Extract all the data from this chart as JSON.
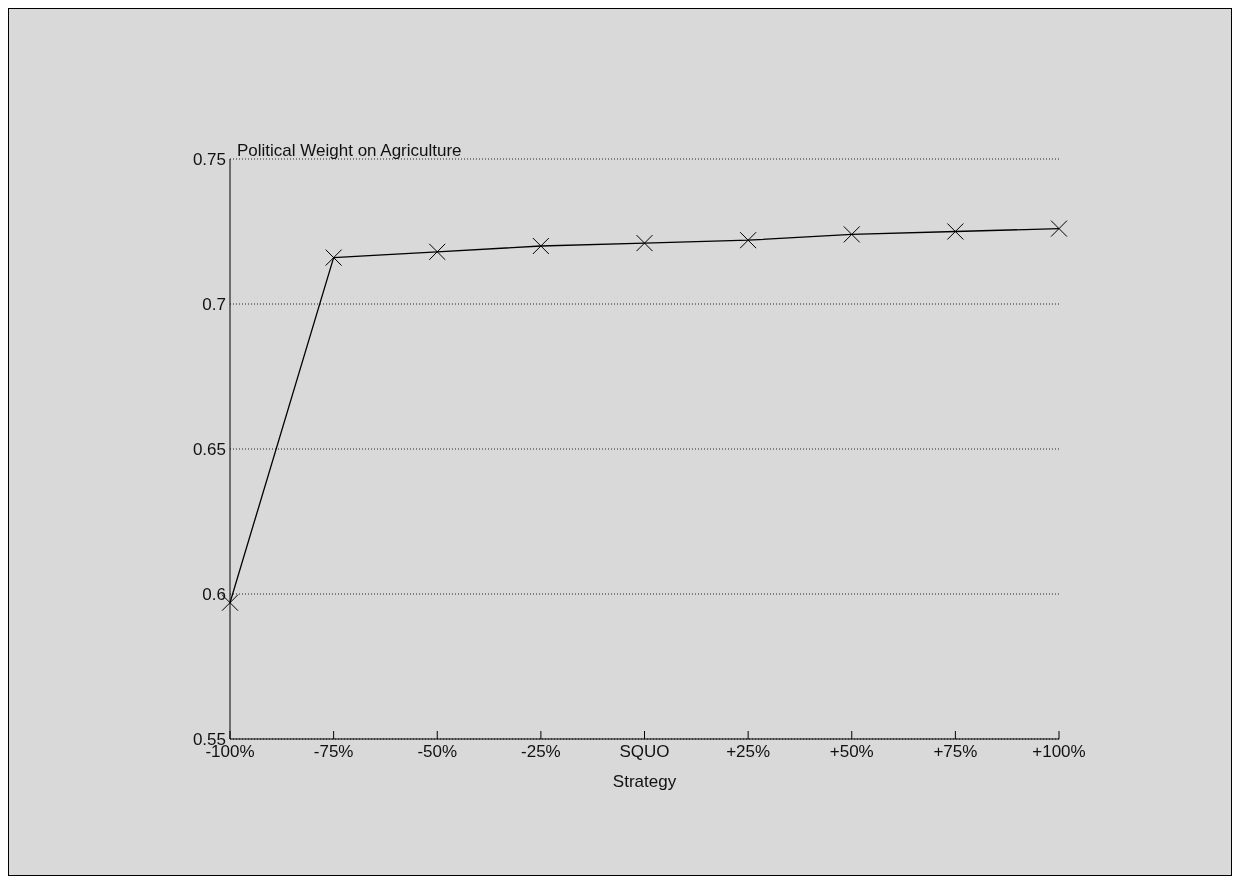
{
  "chart_data": {
    "type": "line",
    "title": "Political Weight on Agriculture",
    "xlabel": "Strategy",
    "categories": [
      "-100%",
      "-75%",
      "-50%",
      "-25%",
      "SQUO",
      "+25%",
      "+50%",
      "+75%",
      "+100%"
    ],
    "series": [
      {
        "color": "#000000",
        "values": [
          0.597,
          0.716,
          0.718,
          0.72,
          0.721,
          0.722,
          0.724,
          0.725,
          0.726
        ]
      }
    ],
    "ylim": [
      0.55,
      0.75
    ],
    "yticks": [
      0.55,
      0.6,
      0.65,
      0.7,
      0.75
    ],
    "grid": "y",
    "marker": "cross",
    "line_style": "solid"
  }
}
